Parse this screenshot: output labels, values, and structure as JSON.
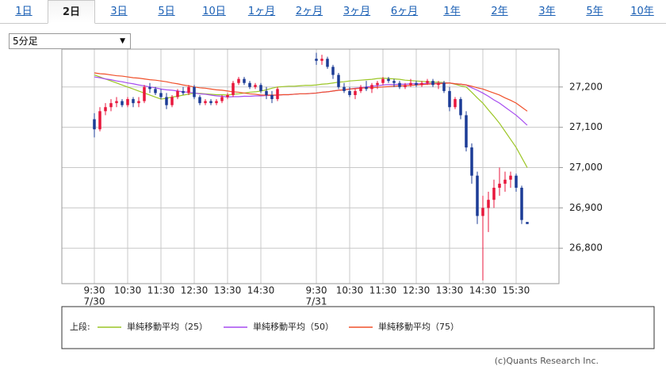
{
  "tabs": [
    {
      "label": "1日",
      "selected": false
    },
    {
      "label": "2日",
      "selected": true
    },
    {
      "label": "3日",
      "selected": false
    },
    {
      "label": "5日",
      "selected": false
    },
    {
      "label": "10日",
      "selected": false
    },
    {
      "label": "1ヶ月",
      "selected": false
    },
    {
      "label": "2ヶ月",
      "selected": false
    },
    {
      "label": "3ヶ月",
      "selected": false
    },
    {
      "label": "6ヶ月",
      "selected": false
    },
    {
      "label": "1年",
      "selected": false
    },
    {
      "label": "2年",
      "selected": false
    },
    {
      "label": "3年",
      "selected": false
    },
    {
      "label": "5年",
      "selected": false
    },
    {
      "label": "10年",
      "selected": false
    }
  ],
  "interval_select": "5分足",
  "chart_data": {
    "type": "candlestick",
    "categories": [
      "9:30",
      null,
      null,
      null,
      null,
      null,
      "10:30",
      null,
      null,
      null,
      null,
      null,
      "11:30",
      null,
      null,
      null,
      null,
      null,
      "12:30",
      null,
      null,
      null,
      null,
      null,
      "13:30",
      null,
      null,
      null,
      null,
      null,
      "14:30",
      null,
      null,
      null,
      null,
      null,
      null,
      null,
      null,
      null,
      "9:30",
      null,
      null,
      null,
      null,
      null,
      "10:30",
      null,
      null,
      null,
      null,
      null,
      "11:30",
      null,
      null,
      null,
      null,
      null,
      "12:30",
      null,
      null,
      null,
      null,
      null,
      "13:30",
      null,
      null,
      null,
      null,
      null,
      "14:30",
      null,
      null,
      null,
      null,
      null,
      "15:30",
      null,
      null
    ],
    "category_dates": [
      "7/30",
      null,
      null,
      null,
      null,
      null,
      null,
      null,
      null,
      null,
      null,
      null,
      null,
      null,
      null,
      null,
      null,
      null,
      null,
      null,
      null,
      null,
      null,
      null,
      null,
      null,
      null,
      null,
      null,
      null,
      null,
      null,
      null,
      null,
      null,
      null,
      null,
      null,
      null,
      null,
      "7/31",
      null,
      null,
      null,
      null,
      null,
      null,
      null,
      null,
      null,
      null,
      null,
      null,
      null,
      null,
      null,
      null,
      null,
      null,
      null,
      null,
      null,
      null,
      null,
      null,
      null,
      null,
      null,
      null,
      null,
      null,
      null,
      null,
      null,
      null,
      null,
      null,
      null,
      null
    ],
    "ohlc": [
      [
        27120,
        27135,
        27075,
        27095
      ],
      [
        27095,
        27150,
        27090,
        27140
      ],
      [
        27140,
        27160,
        27130,
        27150
      ],
      [
        27150,
        27170,
        27140,
        27160
      ],
      [
        27160,
        27175,
        27150,
        27165
      ],
      [
        27165,
        27170,
        27150,
        27155
      ],
      [
        27155,
        27175,
        27150,
        27170
      ],
      [
        27170,
        27175,
        27150,
        27160
      ],
      [
        27160,
        27175,
        27150,
        27165
      ],
      [
        27165,
        27205,
        27160,
        27200
      ],
      [
        27200,
        27210,
        27185,
        27195
      ],
      [
        27195,
        27200,
        27180,
        27185
      ],
      [
        27185,
        27195,
        27170,
        27175
      ],
      [
        27175,
        27185,
        27145,
        27155
      ],
      [
        27155,
        27180,
        27150,
        27175
      ],
      [
        27175,
        27195,
        27170,
        27190
      ],
      [
        27190,
        27200,
        27180,
        27185
      ],
      [
        27185,
        27205,
        27180,
        27200
      ],
      [
        27200,
        27205,
        27170,
        27175
      ],
      [
        27175,
        27180,
        27155,
        27160
      ],
      [
        27160,
        27170,
        27155,
        27165
      ],
      [
        27165,
        27170,
        27155,
        27160
      ],
      [
        27160,
        27170,
        27155,
        27165
      ],
      [
        27165,
        27180,
        27160,
        27175
      ],
      [
        27175,
        27185,
        27170,
        27180
      ],
      [
        27180,
        27215,
        27175,
        27210
      ],
      [
        27210,
        27225,
        27205,
        27220
      ],
      [
        27220,
        27225,
        27205,
        27210
      ],
      [
        27210,
        27215,
        27195,
        27200
      ],
      [
        27200,
        27210,
        27195,
        27205
      ],
      [
        27205,
        27210,
        27185,
        27190
      ],
      [
        27190,
        27200,
        27170,
        27180
      ],
      [
        27180,
        27190,
        27160,
        27170
      ],
      [
        27170,
        27200,
        27165,
        27195
      ],
      null,
      null,
      null,
      null,
      null,
      null,
      [
        27270,
        27285,
        27255,
        27265
      ],
      [
        27265,
        27280,
        27255,
        27270
      ],
      [
        27270,
        27275,
        27245,
        27250
      ],
      [
        27250,
        27255,
        27220,
        27230
      ],
      [
        27230,
        27235,
        27195,
        27200
      ],
      [
        27200,
        27210,
        27185,
        27190
      ],
      [
        27190,
        27200,
        27175,
        27180
      ],
      [
        27180,
        27195,
        27170,
        27190
      ],
      [
        27190,
        27205,
        27185,
        27200
      ],
      [
        27200,
        27215,
        27190,
        27195
      ],
      [
        27195,
        27210,
        27185,
        27205
      ],
      [
        27205,
        27215,
        27195,
        27210
      ],
      [
        27210,
        27225,
        27205,
        27220
      ],
      [
        27220,
        27225,
        27210,
        27215
      ],
      [
        27215,
        27220,
        27200,
        27210
      ],
      [
        27210,
        27215,
        27195,
        27200
      ],
      [
        27200,
        27210,
        27195,
        27205
      ],
      [
        27205,
        27220,
        27200,
        27210
      ],
      [
        27210,
        27215,
        27200,
        27205
      ],
      [
        27205,
        27215,
        27200,
        27210
      ],
      [
        27210,
        27220,
        27205,
        27215
      ],
      [
        27215,
        27220,
        27200,
        27205
      ],
      [
        27205,
        27215,
        27195,
        27210
      ],
      [
        27210,
        27215,
        27185,
        27190
      ],
      [
        27190,
        27200,
        27140,
        27150
      ],
      [
        27150,
        27175,
        27145,
        27170
      ],
      [
        27170,
        27175,
        27120,
        27130
      ],
      [
        27130,
        27140,
        27040,
        27050
      ],
      [
        27050,
        27060,
        26960,
        26980
      ],
      [
        26980,
        26990,
        26860,
        26880
      ],
      [
        26880,
        26930,
        26720,
        26900
      ],
      [
        26900,
        26940,
        26840,
        26920
      ],
      [
        26920,
        26970,
        26900,
        26950
      ],
      [
        26950,
        27000,
        26930,
        26960
      ],
      [
        26960,
        26990,
        26940,
        26970
      ],
      [
        26970,
        26990,
        26950,
        26980
      ],
      [
        26980,
        26985,
        26940,
        26950
      ],
      [
        26950,
        26955,
        26860,
        26870
      ],
      [
        26865,
        26865,
        26860,
        26860
      ]
    ],
    "up_color": "#e8173c",
    "down_color": "#1c3c96",
    "series": [
      {
        "name": "単純移動平均（25）",
        "color": "#9cc626",
        "values": [
          27230,
          27225,
          27220,
          27215,
          27210,
          27205,
          27200,
          27195,
          27190,
          27185,
          27180,
          27175,
          27170,
          27172,
          27175,
          27177,
          27180,
          27182,
          27185,
          27184,
          27183,
          27182,
          27181,
          27181,
          27180,
          27182,
          27183,
          27185,
          27187,
          27188,
          27190,
          27193,
          27197,
          27200,
          27201,
          27202,
          27202,
          27203,
          27204,
          27204,
          27205,
          27207,
          27208,
          27210,
          27212,
          27213,
          27215,
          27216,
          27217,
          27218,
          27219,
          27221,
          27222,
          27221,
          27220,
          27219,
          27217,
          27216,
          27215,
          27214,
          27213,
          27212,
          27212,
          27211,
          27210,
          27207,
          27203,
          27200,
          27187,
          27173,
          27160,
          27143,
          27127,
          27110,
          27090,
          27070,
          27050,
          27025,
          27000
        ]
      },
      {
        "name": "単純移動平均（50）",
        "color": "#a64cf0",
        "values": [
          27225,
          27223,
          27220,
          27218,
          27215,
          27213,
          27210,
          27208,
          27205,
          27203,
          27200,
          27198,
          27195,
          27193,
          27192,
          27190,
          27188,
          27187,
          27185,
          27183,
          27182,
          27180,
          27178,
          27177,
          27175,
          27176,
          27176,
          27177,
          27177,
          27178,
          27178,
          27179,
          27179,
          27180,
          27181,
          27181,
          27182,
          27183,
          27183,
          27184,
          27185,
          27187,
          27188,
          27190,
          27192,
          27193,
          27195,
          27197,
          27198,
          27200,
          27202,
          27203,
          27205,
          27206,
          27206,
          27207,
          27207,
          27208,
          27208,
          27208,
          27209,
          27209,
          27209,
          27210,
          27210,
          27208,
          27207,
          27205,
          27198,
          27192,
          27185,
          27177,
          27168,
          27160,
          27150,
          27140,
          27130,
          27118,
          27105
        ]
      },
      {
        "name": "単純移動平均（75）",
        "color": "#f0502a",
        "values": [
          27235,
          27233,
          27232,
          27230,
          27228,
          27227,
          27225,
          27223,
          27222,
          27220,
          27218,
          27217,
          27215,
          27213,
          27210,
          27208,
          27205,
          27203,
          27200,
          27198,
          27197,
          27195,
          27193,
          27192,
          27190,
          27188,
          27187,
          27185,
          27183,
          27182,
          27180,
          27180,
          27180,
          27180,
          27181,
          27181,
          27182,
          27183,
          27183,
          27184,
          27185,
          27187,
          27188,
          27190,
          27192,
          27193,
          27195,
          27196,
          27197,
          27198,
          27198,
          27199,
          27200,
          27201,
          27202,
          27203,
          27203,
          27204,
          27205,
          27206,
          27207,
          27208,
          27208,
          27209,
          27210,
          27208,
          27207,
          27205,
          27202,
          27198,
          27195,
          27190,
          27185,
          27180,
          27173,
          27167,
          27160,
          27150,
          27140
        ]
      }
    ],
    "legend_title": "上段:",
    "ylim": [
      26712,
      27294
    ],
    "yticks": [
      {
        "value": 26800,
        "label": "26,800"
      },
      {
        "value": 26900,
        "label": "26,900"
      },
      {
        "value": 27000,
        "label": "27,000"
      },
      {
        "value": 27100,
        "label": "27,100"
      },
      {
        "value": 27200,
        "label": "27,200"
      }
    ],
    "grid": true,
    "credit": "(c)Quants Research Inc."
  }
}
